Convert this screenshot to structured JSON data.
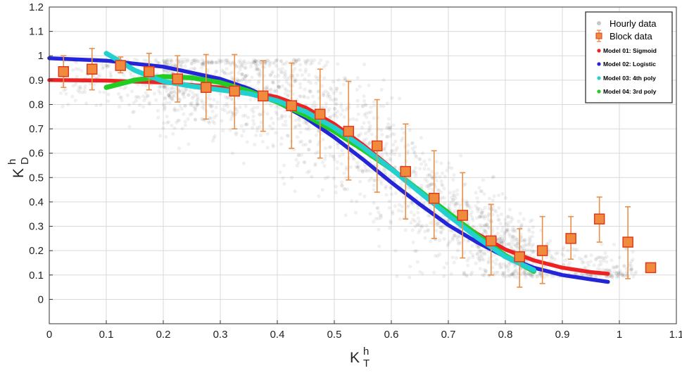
{
  "chart_data": {
    "type": "scatter",
    "xlabel": {
      "base": "K",
      "sup": "h",
      "sub": "T"
    },
    "ylabel": {
      "base": "K",
      "sup": "h",
      "sub": "D"
    },
    "xlim": [
      0,
      1.1
    ],
    "ylim": [
      -0.1,
      1.2
    ],
    "x_ticks": [
      "0",
      "0.1",
      "0.2",
      "0.3",
      "0.4",
      "0.5",
      "0.6",
      "0.7",
      "0.8",
      "0.9",
      "1",
      "1.1"
    ],
    "y_ticks": [
      "0",
      "0.1",
      "0.2",
      "0.3",
      "0.4",
      "0.5",
      "0.6",
      "0.7",
      "0.8",
      "0.9",
      "1",
      "1.1",
      "1.2"
    ],
    "grid": true,
    "legend_position": "top-right",
    "legend": [
      {
        "label": "Hourly data",
        "marker": "faint-dot",
        "color": "#c8c8c8"
      },
      {
        "label": "Block data",
        "marker": "square-errorbar",
        "color": "#f08a3c"
      },
      {
        "label": "Model 01: Sigmoid",
        "marker": "dot",
        "color": "#ee2222"
      },
      {
        "label": "Model 02: Logistic",
        "marker": "dot",
        "color": "#2424d8"
      },
      {
        "label": "Model 03: 4th poly",
        "marker": "dot",
        "color": "#22d0d0"
      },
      {
        "label": "Model 04: 3rd poly",
        "marker": "dot",
        "color": "#22cc22"
      }
    ],
    "block_data": {
      "x": [
        0.025,
        0.075,
        0.125,
        0.175,
        0.225,
        0.275,
        0.325,
        0.375,
        0.425,
        0.475,
        0.525,
        0.575,
        0.625,
        0.675,
        0.725,
        0.775,
        0.825,
        0.865,
        0.915,
        0.965,
        1.015,
        1.055
      ],
      "y": [
        0.935,
        0.945,
        0.96,
        0.935,
        0.905,
        0.87,
        0.855,
        0.835,
        0.795,
        0.76,
        0.69,
        0.63,
        0.525,
        0.415,
        0.345,
        0.24,
        0.175,
        0.2,
        0.25,
        0.33,
        0.235,
        0.13
      ],
      "y_low": [
        0.87,
        0.86,
        0.93,
        0.86,
        0.81,
        0.74,
        0.7,
        0.69,
        0.62,
        0.58,
        0.49,
        0.44,
        0.33,
        0.25,
        0.17,
        0.1,
        0.05,
        0.065,
        0.165,
        0.235,
        0.085,
        0.13
      ],
      "y_high": [
        1.0,
        1.03,
        0.995,
        1.01,
        1.0,
        1.005,
        1.005,
        0.98,
        0.97,
        0.945,
        0.895,
        0.82,
        0.72,
        0.61,
        0.52,
        0.39,
        0.29,
        0.34,
        0.34,
        0.42,
        0.38,
        0.13
      ],
      "color": "#f08a3c",
      "edge_color": "#e03a1c",
      "errorbar_color": "#e8904a"
    },
    "series": [
      {
        "name": "Model 01: Sigmoid",
        "color": "#ee2222",
        "x": [
          0.0,
          0.1,
          0.2,
          0.3,
          0.35,
          0.4,
          0.45,
          0.5,
          0.55,
          0.6,
          0.65,
          0.7,
          0.75,
          0.8,
          0.85,
          0.9,
          0.95,
          0.98
        ],
        "y": [
          0.9,
          0.898,
          0.89,
          0.87,
          0.855,
          0.83,
          0.787,
          0.72,
          0.635,
          0.54,
          0.44,
          0.35,
          0.27,
          0.205,
          0.16,
          0.13,
          0.112,
          0.105
        ]
      },
      {
        "name": "Model 02: Logistic",
        "color": "#2424d8",
        "x": [
          0.0,
          0.1,
          0.2,
          0.3,
          0.35,
          0.4,
          0.45,
          0.5,
          0.55,
          0.6,
          0.65,
          0.7,
          0.75,
          0.8,
          0.85,
          0.9,
          0.95,
          0.98
        ],
        "y": [
          0.99,
          0.98,
          0.955,
          0.905,
          0.865,
          0.81,
          0.745,
          0.665,
          0.575,
          0.48,
          0.39,
          0.305,
          0.235,
          0.175,
          0.13,
          0.1,
          0.082,
          0.072
        ]
      },
      {
        "name": "Model 03: 4th poly",
        "color": "#22d0d0",
        "x": [
          0.1,
          0.15,
          0.2,
          0.25,
          0.3,
          0.35,
          0.4,
          0.45,
          0.5,
          0.55,
          0.6,
          0.65,
          0.7,
          0.75,
          0.8,
          0.85
        ],
        "y": [
          1.01,
          0.94,
          0.895,
          0.875,
          0.86,
          0.845,
          0.815,
          0.77,
          0.705,
          0.625,
          0.535,
          0.44,
          0.345,
          0.255,
          0.175,
          0.12
        ]
      },
      {
        "name": "Model 04: 3rd poly",
        "color": "#22cc22",
        "x": [
          0.1,
          0.15,
          0.2,
          0.25,
          0.3,
          0.35,
          0.4,
          0.45,
          0.5,
          0.55,
          0.6,
          0.65,
          0.7,
          0.75,
          0.8,
          0.85
        ],
        "y": [
          0.87,
          0.9,
          0.915,
          0.91,
          0.89,
          0.855,
          0.81,
          0.755,
          0.69,
          0.615,
          0.535,
          0.445,
          0.355,
          0.265,
          0.18,
          0.115
        ]
      }
    ]
  }
}
